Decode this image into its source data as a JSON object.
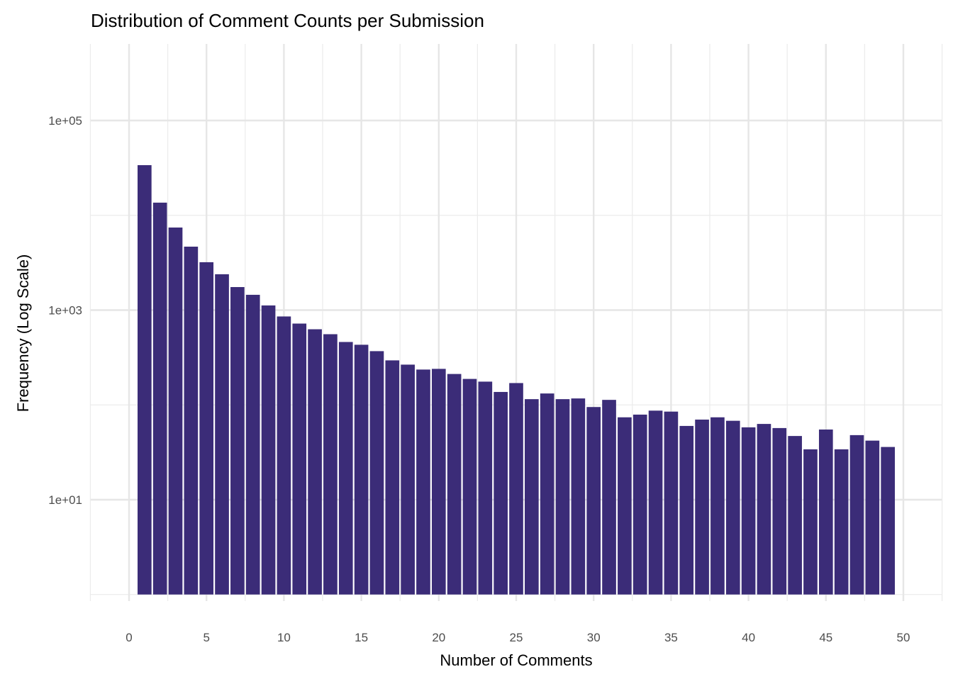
{
  "chart_data": {
    "type": "bar",
    "title": "Distribution of Comment Counts per Submission",
    "xlabel": "Number of Comments",
    "ylabel": "Frequency (Log Scale)",
    "y_scale": "log10",
    "xlim": [
      -2.5,
      52.5
    ],
    "ylim": [
      1,
      630000
    ],
    "x_ticks": [
      0,
      5,
      10,
      15,
      20,
      25,
      30,
      35,
      40,
      45,
      50
    ],
    "x_tick_labels": [
      "0",
      "5",
      "10",
      "15",
      "20",
      "25",
      "30",
      "35",
      "40",
      "45",
      "50"
    ],
    "y_ticks": [
      10,
      1000,
      100000
    ],
    "y_tick_labels": [
      "1e+01",
      "1e+03",
      "1e+05"
    ],
    "grid": true,
    "bar_color": "#3b2c78",
    "x": [
      1,
      2,
      3,
      4,
      5,
      6,
      7,
      8,
      9,
      10,
      11,
      12,
      13,
      14,
      15,
      16,
      17,
      18,
      19,
      20,
      21,
      22,
      23,
      24,
      25,
      26,
      27,
      28,
      29,
      30,
      31,
      32,
      33,
      34,
      35,
      36,
      37,
      38,
      39,
      40,
      41,
      42,
      43,
      44,
      45,
      46,
      47,
      48,
      49
    ],
    "values": [
      33800,
      13600,
      7430,
      4670,
      3200,
      2390,
      1750,
      1450,
      1120,
      857,
      721,
      628,
      557,
      461,
      431,
      369,
      295,
      266,
      236,
      240,
      212,
      188,
      176,
      137,
      170,
      115,
      132,
      115,
      117,
      95,
      113,
      74,
      79,
      87,
      85,
      60,
      70,
      74,
      68,
      58,
      63,
      57,
      47,
      34,
      55,
      34,
      48,
      42,
      36
    ]
  }
}
